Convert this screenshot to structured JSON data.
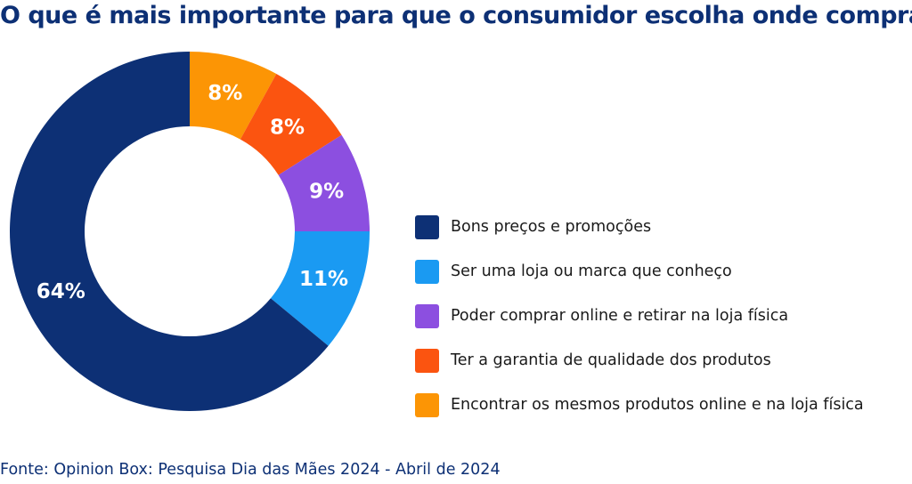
{
  "chart_data": {
    "type": "pie",
    "title": "O que é mais importante para que o consumidor escolha onde comprar?",
    "categories": [
      "Bons preços e promoções",
      "Ser uma loja ou marca que conheço",
      "Poder comprar online e retirar na loja física",
      "Ter a garantia de qualidade dos produtos",
      "Encontrar os mesmos produtos online e na loja física"
    ],
    "values": [
      64,
      11,
      9,
      8,
      8
    ],
    "value_labels": [
      "64%",
      "11%",
      "9%",
      "8%",
      "8%"
    ],
    "colors": [
      "#0d3075",
      "#1a9af2",
      "#8c4fe0",
      "#fb5410",
      "#fc9505"
    ],
    "donut": true,
    "legend_position": "right",
    "source": "Fonte: Opinion Box: Pesquisa Dia das Mães 2024 - Abril de 2024"
  }
}
